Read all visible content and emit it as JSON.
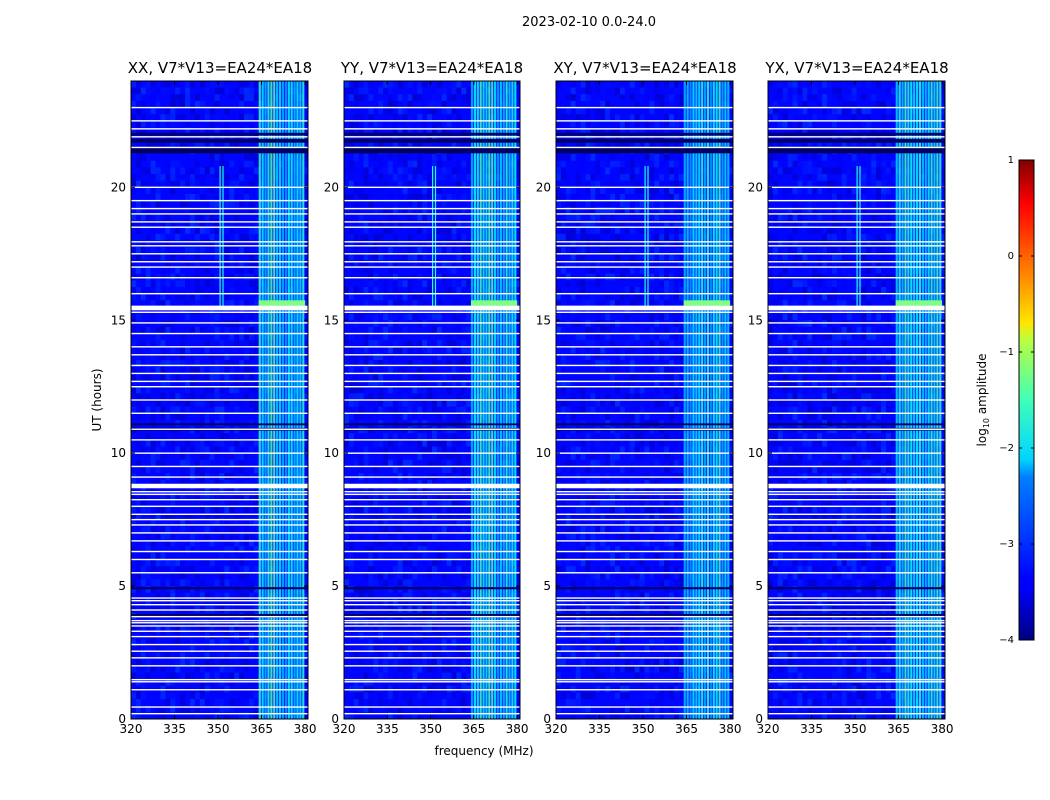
{
  "figure": {
    "suptitle": "2023-02-10 0.0-24.0"
  },
  "colorbar": {
    "label": "log$_{10}$ amplitude",
    "label_main": "log",
    "label_sub": "10",
    "label_tail": " amplitude",
    "min": -4,
    "max": 1,
    "ticks": [
      "1",
      "0",
      "−1",
      "−2",
      "−3",
      "−4"
    ],
    "tick_values": [
      1,
      0,
      -1,
      -2,
      -3,
      -4
    ],
    "colormap": "jet"
  },
  "chart_data": [
    {
      "type": "heatmap",
      "title": "XX, V7*V13=EA24*EA18",
      "xlabel": "",
      "ylabel": "UT (hours)",
      "xlim": [
        320,
        381
      ],
      "ylim": [
        0,
        24
      ],
      "xticks": [
        320,
        335,
        350,
        365,
        380
      ],
      "yticks": [
        0,
        5,
        10,
        15,
        20
      ],
      "rfi_band_mhz": [
        364,
        380
      ],
      "spike_mhz": [
        350.5,
        351.5
      ],
      "spike_hours": [
        15.5,
        20.8
      ]
    },
    {
      "type": "heatmap",
      "title": "YY, V7*V13=EA24*EA18",
      "xlabel": "frequency (MHz)",
      "ylabel": "",
      "xlim": [
        320,
        381
      ],
      "ylim": [
        0,
        24
      ],
      "xticks": [
        320,
        335,
        350,
        365,
        380
      ],
      "yticks": [
        0,
        5,
        10,
        15,
        20
      ],
      "rfi_band_mhz": [
        364,
        380
      ],
      "spike_mhz": [
        350.5,
        351.5
      ],
      "spike_hours": [
        15.5,
        20.8
      ]
    },
    {
      "type": "heatmap",
      "title": "XY, V7*V13=EA24*EA18",
      "xlabel": "",
      "ylabel": "",
      "xlim": [
        320,
        381
      ],
      "ylim": [
        0,
        24
      ],
      "xticks": [
        320,
        335,
        350,
        365,
        380
      ],
      "yticks": [
        0,
        5,
        10,
        15,
        20
      ],
      "rfi_band_mhz": [
        364,
        380
      ],
      "spike_mhz": [
        350.5,
        351.5
      ],
      "spike_hours": [
        15.5,
        20.8
      ]
    },
    {
      "type": "heatmap",
      "title": "YX, V7*V13=EA24*EA18",
      "xlabel": "",
      "ylabel": "",
      "xlim": [
        320,
        381
      ],
      "ylim": [
        0,
        24
      ],
      "xticks": [
        320,
        335,
        350,
        365,
        380
      ],
      "yticks": [
        0,
        5,
        10,
        15,
        20
      ],
      "rfi_band_mhz": [
        364,
        380
      ],
      "spike_mhz": [
        350.5,
        351.5
      ],
      "spike_hours": [
        15.5,
        20.8
      ]
    }
  ],
  "flagged_hours": [
    0.2,
    0.45,
    1.1,
    1.4,
    1.48,
    2.0,
    2.3,
    2.55,
    2.8,
    3.1,
    3.3,
    3.5,
    3.62,
    3.7,
    3.85,
    4.1,
    4.3,
    4.45,
    4.55,
    5.5,
    6.0,
    6.3,
    6.7,
    7.0,
    7.3,
    7.5,
    7.7,
    8.0,
    8.25,
    8.45,
    8.55,
    9.1,
    9.5,
    10.0,
    10.5,
    10.9,
    11.5,
    12.0,
    12.5,
    12.7,
    13.0,
    13.3,
    13.7,
    14.0,
    14.5,
    14.9,
    15.3,
    15.4,
    15.5,
    16.0,
    16.6,
    17.0,
    17.2,
    17.5,
    17.8,
    17.95,
    18.5,
    18.7,
    19.0,
    19.2,
    19.5,
    20.0,
    21.5,
    21.9,
    22.2,
    22.5,
    23.0
  ],
  "thick_flags": [
    [
      8.68,
      8.85
    ],
    [
      15.4,
      15.55
    ]
  ],
  "dark_rows": [
    [
      21.28,
      21.48
    ],
    [
      21.68,
      21.82
    ],
    [
      21.95,
      22.05
    ],
    [
      3.82,
      3.95
    ],
    [
      4.88,
      4.96
    ],
    [
      10.85,
      10.95
    ],
    [
      11.05,
      11.12
    ]
  ]
}
